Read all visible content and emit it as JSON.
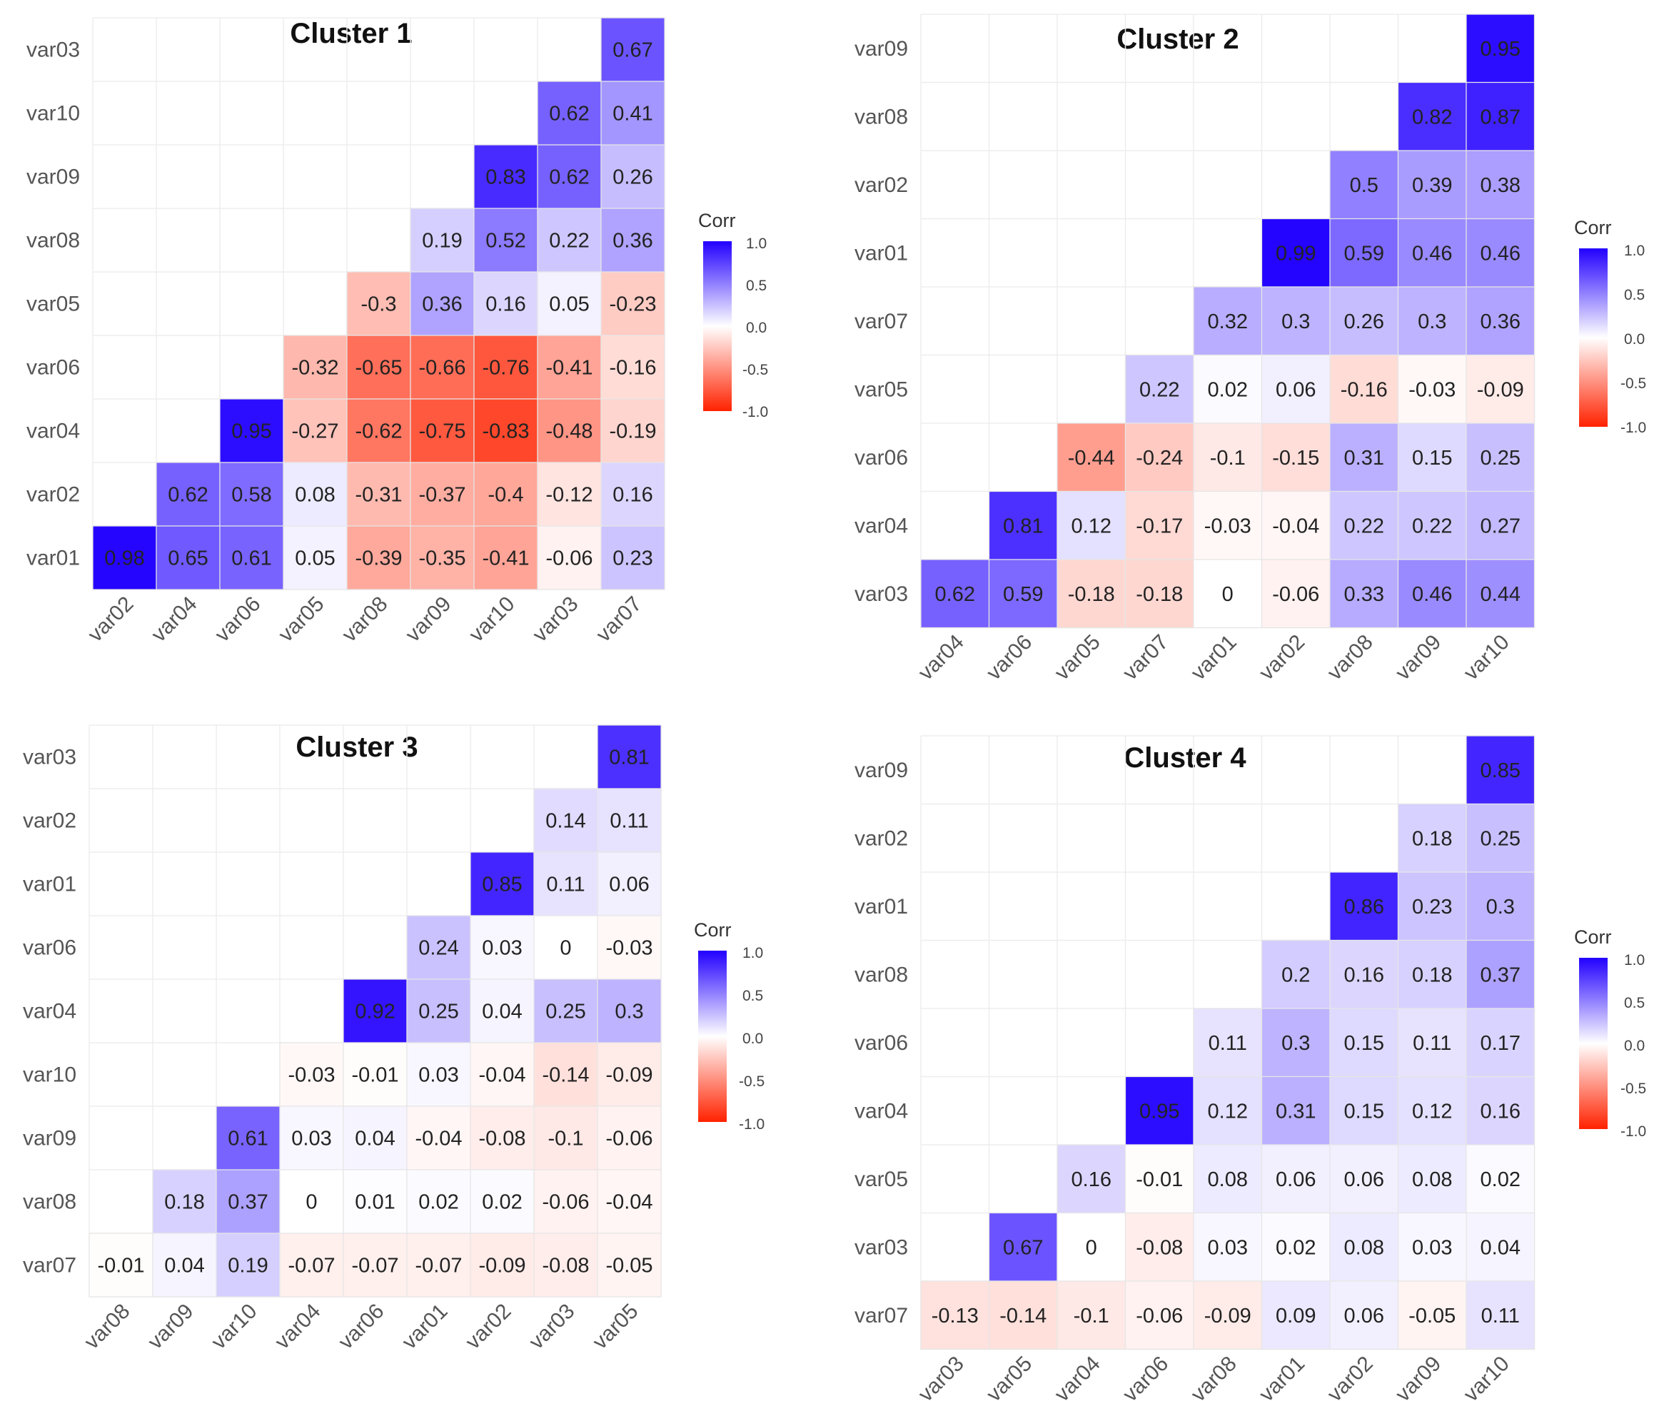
{
  "colors": {
    "negative": "#ff2200",
    "zero": "#ffffff",
    "positive": "#2200ff"
  },
  "legend": {
    "title": "Corr",
    "ticks": [
      "1.0",
      "0.5",
      "0.0",
      "-0.5",
      "-1.0"
    ]
  },
  "chart_data": [
    {
      "type": "heatmap",
      "title": "Cluster 1",
      "rows": [
        "var03",
        "var10",
        "var09",
        "var08",
        "var05",
        "var06",
        "var04",
        "var02",
        "var01"
      ],
      "cols": [
        "var02",
        "var04",
        "var06",
        "var05",
        "var08",
        "var09",
        "var10",
        "var03",
        "var07"
      ],
      "values": [
        [
          null,
          null,
          null,
          null,
          null,
          null,
          null,
          null,
          0.67
        ],
        [
          null,
          null,
          null,
          null,
          null,
          null,
          null,
          0.62,
          0.41
        ],
        [
          null,
          null,
          null,
          null,
          null,
          null,
          0.83,
          0.62,
          0.26
        ],
        [
          null,
          null,
          null,
          null,
          null,
          0.19,
          0.52,
          0.22,
          0.36
        ],
        [
          null,
          null,
          null,
          null,
          -0.3,
          0.36,
          0.16,
          0.05,
          -0.23
        ],
        [
          null,
          null,
          null,
          -0.32,
          -0.65,
          -0.66,
          -0.76,
          -0.41,
          -0.16
        ],
        [
          null,
          null,
          0.95,
          -0.27,
          -0.62,
          -0.75,
          -0.83,
          -0.48,
          -0.19
        ],
        [
          null,
          0.62,
          0.58,
          0.08,
          -0.31,
          -0.37,
          -0.4,
          -0.12,
          0.16
        ],
        [
          0.98,
          0.65,
          0.61,
          0.05,
          -0.39,
          -0.35,
          -0.41,
          -0.06,
          0.23
        ]
      ],
      "labels": [
        [
          null,
          null,
          null,
          null,
          null,
          null,
          null,
          null,
          "0.67"
        ],
        [
          null,
          null,
          null,
          null,
          null,
          null,
          null,
          "0.62",
          "0.41"
        ],
        [
          null,
          null,
          null,
          null,
          null,
          null,
          "0.83",
          "0.62",
          "0.26"
        ],
        [
          null,
          null,
          null,
          null,
          null,
          "0.19",
          "0.52",
          "0.22",
          "0.36"
        ],
        [
          null,
          null,
          null,
          null,
          "-0.3",
          "0.36",
          "0.16",
          "0.05",
          "-0.23"
        ],
        [
          null,
          null,
          null,
          "-0.32",
          "-0.65",
          "-0.66",
          "-0.76",
          "-0.41",
          "-0.16"
        ],
        [
          null,
          null,
          "0.95",
          "-0.27",
          "-0.62",
          "-0.75",
          "-0.83",
          "-0.48",
          "-0.19"
        ],
        [
          null,
          "0.62",
          "0.58",
          "0.08",
          "-0.31",
          "-0.37",
          "-0.4",
          "-0.12",
          "0.16"
        ],
        [
          "0.98",
          "0.65",
          "0.61",
          "0.05",
          "-0.39",
          "-0.35",
          "-0.41",
          "-0.06",
          "0.23"
        ]
      ]
    },
    {
      "type": "heatmap",
      "title": "Cluster 2",
      "rows": [
        "var09",
        "var08",
        "var02",
        "var01",
        "var07",
        "var05",
        "var06",
        "var04",
        "var03"
      ],
      "cols": [
        "var04",
        "var06",
        "var05",
        "var07",
        "var01",
        "var02",
        "var08",
        "var09",
        "var10"
      ],
      "values": [
        [
          null,
          null,
          null,
          null,
          null,
          null,
          null,
          null,
          0.95
        ],
        [
          null,
          null,
          null,
          null,
          null,
          null,
          null,
          0.82,
          0.87
        ],
        [
          null,
          null,
          null,
          null,
          null,
          null,
          0.5,
          0.39,
          0.38
        ],
        [
          null,
          null,
          null,
          null,
          null,
          0.99,
          0.59,
          0.46,
          0.46
        ],
        [
          null,
          null,
          null,
          null,
          0.32,
          0.3,
          0.26,
          0.3,
          0.36
        ],
        [
          null,
          null,
          null,
          0.22,
          0.02,
          0.06,
          -0.16,
          -0.03,
          -0.09
        ],
        [
          null,
          null,
          -0.44,
          -0.24,
          -0.1,
          -0.15,
          0.31,
          0.15,
          0.25
        ],
        [
          null,
          0.81,
          0.12,
          -0.17,
          -0.03,
          -0.04,
          0.22,
          0.22,
          0.27
        ],
        [
          0.62,
          0.59,
          -0.18,
          -0.18,
          0,
          -0.06,
          0.33,
          0.46,
          0.44
        ]
      ],
      "labels": [
        [
          null,
          null,
          null,
          null,
          null,
          null,
          null,
          null,
          "0.95"
        ],
        [
          null,
          null,
          null,
          null,
          null,
          null,
          null,
          "0.82",
          "0.87"
        ],
        [
          null,
          null,
          null,
          null,
          null,
          null,
          "0.5",
          "0.39",
          "0.38"
        ],
        [
          null,
          null,
          null,
          null,
          null,
          "0.99",
          "0.59",
          "0.46",
          "0.46"
        ],
        [
          null,
          null,
          null,
          null,
          "0.32",
          "0.3",
          "0.26",
          "0.3",
          "0.36"
        ],
        [
          null,
          null,
          null,
          "0.22",
          "0.02",
          "0.06",
          "-0.16",
          "-0.03",
          "-0.09"
        ],
        [
          null,
          null,
          "-0.44",
          "-0.24",
          "-0.1",
          "-0.15",
          "0.31",
          "0.15",
          "0.25"
        ],
        [
          null,
          "0.81",
          "0.12",
          "-0.17",
          "-0.03",
          "-0.04",
          "0.22",
          "0.22",
          "0.27"
        ],
        [
          "0.62",
          "0.59",
          "-0.18",
          "-0.18",
          "0",
          "-0.06",
          "0.33",
          "0.46",
          "0.44"
        ]
      ]
    },
    {
      "type": "heatmap",
      "title": "Cluster 3",
      "rows": [
        "var03",
        "var02",
        "var01",
        "var06",
        "var04",
        "var10",
        "var09",
        "var08",
        "var07"
      ],
      "cols": [
        "var08",
        "var09",
        "var10",
        "var04",
        "var06",
        "var01",
        "var02",
        "var03",
        "var05"
      ],
      "values": [
        [
          null,
          null,
          null,
          null,
          null,
          null,
          null,
          null,
          0.81
        ],
        [
          null,
          null,
          null,
          null,
          null,
          null,
          null,
          0.14,
          0.11
        ],
        [
          null,
          null,
          null,
          null,
          null,
          null,
          0.85,
          0.11,
          0.06
        ],
        [
          null,
          null,
          null,
          null,
          null,
          0.24,
          0.03,
          0,
          -0.03
        ],
        [
          null,
          null,
          null,
          null,
          0.92,
          0.25,
          0.04,
          0.25,
          0.3
        ],
        [
          null,
          null,
          null,
          -0.03,
          -0.01,
          0.03,
          -0.04,
          -0.14,
          -0.09
        ],
        [
          null,
          null,
          0.61,
          0.03,
          0.04,
          -0.04,
          -0.08,
          -0.1,
          -0.06
        ],
        [
          null,
          0.18,
          0.37,
          0,
          0.01,
          0.02,
          0.02,
          -0.06,
          -0.04
        ],
        [
          -0.01,
          0.04,
          0.19,
          -0.07,
          -0.07,
          -0.07,
          -0.09,
          -0.08,
          -0.05
        ]
      ],
      "labels": [
        [
          null,
          null,
          null,
          null,
          null,
          null,
          null,
          null,
          "0.81"
        ],
        [
          null,
          null,
          null,
          null,
          null,
          null,
          null,
          "0.14",
          "0.11"
        ],
        [
          null,
          null,
          null,
          null,
          null,
          null,
          "0.85",
          "0.11",
          "0.06"
        ],
        [
          null,
          null,
          null,
          null,
          null,
          "0.24",
          "0.03",
          "0",
          "-0.03"
        ],
        [
          null,
          null,
          null,
          null,
          "0.92",
          "0.25",
          "0.04",
          "0.25",
          "0.3"
        ],
        [
          null,
          null,
          null,
          "-0.03",
          "-0.01",
          "0.03",
          "-0.04",
          "-0.14",
          "-0.09"
        ],
        [
          null,
          null,
          "0.61",
          "0.03",
          "0.04",
          "-0.04",
          "-0.08",
          "-0.1",
          "-0.06"
        ],
        [
          null,
          "0.18",
          "0.37",
          "0",
          "0.01",
          "0.02",
          "0.02",
          "-0.06",
          "-0.04"
        ],
        [
          "-0.01",
          "0.04",
          "0.19",
          "-0.07",
          "-0.07",
          "-0.07",
          "-0.09",
          "-0.08",
          "-0.05"
        ]
      ]
    },
    {
      "type": "heatmap",
      "title": "Cluster 4",
      "rows": [
        "var09",
        "var02",
        "var01",
        "var08",
        "var06",
        "var04",
        "var05",
        "var03",
        "var07"
      ],
      "cols": [
        "var03",
        "var05",
        "var04",
        "var06",
        "var08",
        "var01",
        "var02",
        "var09",
        "var10"
      ],
      "values": [
        [
          null,
          null,
          null,
          null,
          null,
          null,
          null,
          null,
          0.85
        ],
        [
          null,
          null,
          null,
          null,
          null,
          null,
          null,
          0.18,
          0.25
        ],
        [
          null,
          null,
          null,
          null,
          null,
          null,
          0.86,
          0.23,
          0.3
        ],
        [
          null,
          null,
          null,
          null,
          null,
          0.2,
          0.16,
          0.18,
          0.37
        ],
        [
          null,
          null,
          null,
          null,
          0.11,
          0.3,
          0.15,
          0.11,
          0.17
        ],
        [
          null,
          null,
          null,
          0.95,
          0.12,
          0.31,
          0.15,
          0.12,
          0.16
        ],
        [
          null,
          null,
          0.16,
          -0.01,
          0.08,
          0.06,
          0.06,
          0.08,
          0.02
        ],
        [
          null,
          0.67,
          0,
          -0.08,
          0.03,
          0.02,
          0.08,
          0.03,
          0.04
        ],
        [
          -0.13,
          -0.14,
          -0.1,
          -0.06,
          -0.09,
          0.09,
          0.06,
          -0.05,
          0.11
        ]
      ],
      "labels": [
        [
          null,
          null,
          null,
          null,
          null,
          null,
          null,
          null,
          "0.85"
        ],
        [
          null,
          null,
          null,
          null,
          null,
          null,
          null,
          "0.18",
          "0.25"
        ],
        [
          null,
          null,
          null,
          null,
          null,
          null,
          "0.86",
          "0.23",
          "0.3"
        ],
        [
          null,
          null,
          null,
          null,
          null,
          "0.2",
          "0.16",
          "0.18",
          "0.37"
        ],
        [
          null,
          null,
          null,
          null,
          "0.11",
          "0.3",
          "0.15",
          "0.11",
          "0.17"
        ],
        [
          null,
          null,
          null,
          "0.95",
          "0.12",
          "0.31",
          "0.15",
          "0.12",
          "0.16"
        ],
        [
          null,
          null,
          "0.16",
          "-0.01",
          "0.08",
          "0.06",
          "0.06",
          "0.08",
          "0.02"
        ],
        [
          null,
          "0.67",
          "0",
          "-0.08",
          "0.03",
          "0.02",
          "0.08",
          "0.03",
          "0.04"
        ],
        [
          "-0.13",
          "-0.14",
          "-0.1",
          "-0.06",
          "-0.09",
          "0.09",
          "0.06",
          "-0.05",
          "0.11"
        ]
      ]
    }
  ]
}
